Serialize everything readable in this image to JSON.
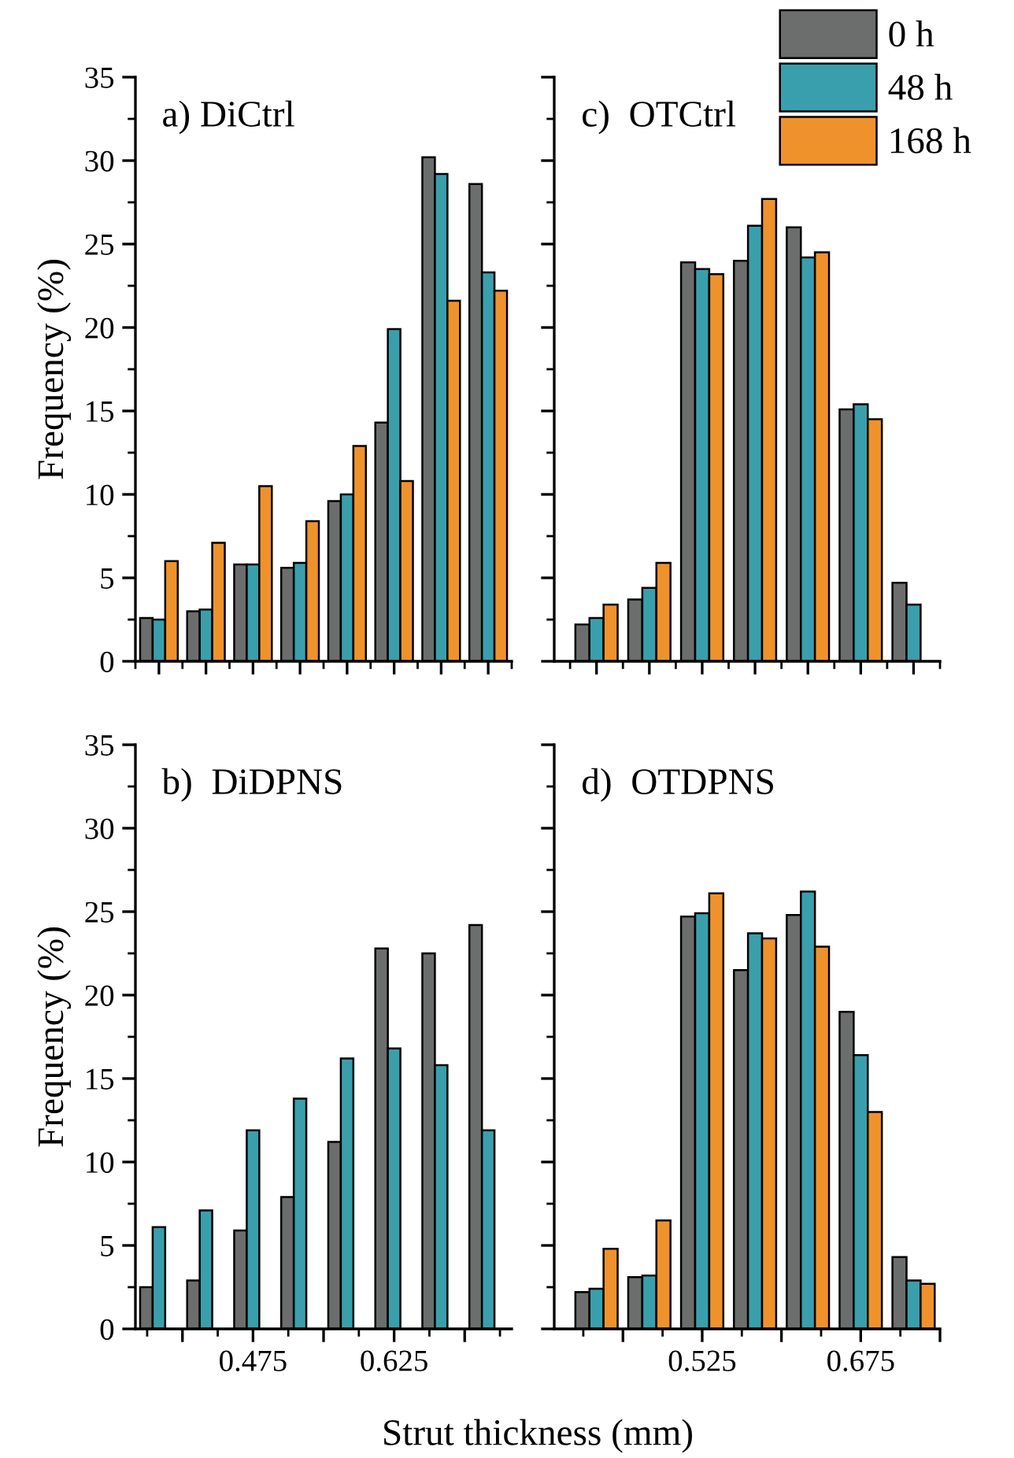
{
  "chart_data": [
    {
      "type": "bar",
      "annotations": [
        "a) DiCtrl"
      ],
      "ylabel": "Frequency (%)",
      "x": [
        0.375,
        0.425,
        0.475,
        0.525,
        0.575,
        0.625,
        0.675,
        0.725
      ],
      "xlim": [
        0.35,
        0.75
      ],
      "xticks": [
        {
          "value": 0.375,
          "label": null
        },
        {
          "value": 0.425,
          "label": null
        },
        {
          "value": 0.475,
          "label": null
        },
        {
          "value": 0.525,
          "label": null
        },
        {
          "value": 0.575,
          "label": null
        },
        {
          "value": 0.625,
          "label": null
        },
        {
          "value": 0.675,
          "label": null
        },
        {
          "value": 0.725,
          "label": null
        }
      ],
      "ylim": [
        0,
        35
      ],
      "yticks": [
        0,
        5,
        10,
        15,
        20,
        25,
        30,
        35
      ],
      "tick_labels": "y",
      "grid": false,
      "legend": false,
      "series": [
        {
          "color": "#6b6e6c",
          "values": [
            2.6,
            3.0,
            5.8,
            5.6,
            9.6,
            14.3,
            30.2,
            28.6
          ]
        },
        {
          "color": "#3a9fac",
          "values": [
            2.5,
            3.1,
            5.8,
            5.9,
            10.0,
            19.9,
            29.2,
            23.3
          ]
        },
        {
          "color": "#ef922c",
          "values": [
            6.0,
            7.1,
            10.5,
            8.4,
            12.9,
            10.8,
            21.6,
            22.2
          ]
        }
      ]
    },
    {
      "type": "bar",
      "annotations": [
        "c)  OTCtrl"
      ],
      "x": [
        0.425,
        0.475,
        0.525,
        0.575,
        0.625,
        0.675,
        0.725
      ],
      "xlim": [
        0.385,
        0.75
      ],
      "xticks": [
        {
          "value": 0.425,
          "label": null
        },
        {
          "value": 0.475,
          "label": null
        },
        {
          "value": 0.525,
          "label": null
        },
        {
          "value": 0.575,
          "label": null
        },
        {
          "value": 0.625,
          "label": null
        },
        {
          "value": 0.675,
          "label": null
        },
        {
          "value": 0.725,
          "label": null
        }
      ],
      "ylim": [
        0,
        35
      ],
      "yticks": [
        {
          "value": 0,
          "label": null
        },
        {
          "value": 5,
          "label": null
        },
        {
          "value": 10,
          "label": null
        },
        {
          "value": 15,
          "label": null
        },
        {
          "value": 20,
          "label": null
        },
        {
          "value": 25,
          "label": null
        },
        {
          "value": 30,
          "label": null
        },
        {
          "value": 35,
          "label": null
        }
      ],
      "tick_labels": false,
      "grid": false,
      "legend": "top right",
      "series": [
        {
          "name": "0 h",
          "color": "#6b6e6c",
          "values": [
            2.2,
            3.7,
            23.9,
            24.0,
            26.0,
            15.1,
            4.7
          ]
        },
        {
          "name": "48 h",
          "color": "#3a9fac",
          "values": [
            2.6,
            4.4,
            23.5,
            26.1,
            24.2,
            15.4,
            3.4
          ]
        },
        {
          "name": "168 h",
          "color": "#ef922c",
          "values": [
            3.4,
            5.9,
            23.2,
            27.7,
            24.5,
            14.5,
            null
          ]
        }
      ]
    },
    {
      "type": "bar",
      "annotations": [
        "b)  DiDPNS"
      ],
      "ylabel": "Frequency (%)",
      "xlabel": "Strut thickness (mm)",
      "x": [
        0.375,
        0.425,
        0.475,
        0.525,
        0.575,
        0.625,
        0.675,
        0.725
      ],
      "xlim": [
        0.35,
        0.75
      ],
      "xticks": [
        {
          "value": 0.4,
          "label": null
        },
        0.475,
        {
          "value": 0.55,
          "label": null
        },
        0.625,
        {
          "value": 0.7,
          "label": null
        }
      ],
      "ylim": [
        0,
        35
      ],
      "yticks": [
        0,
        5,
        10,
        15,
        20,
        25,
        30,
        35
      ],
      "grid": false,
      "legend": false,
      "series": [
        {
          "color": "#6b6e6c",
          "values": [
            2.5,
            2.9,
            5.9,
            7.9,
            11.2,
            22.8,
            22.5,
            24.2
          ]
        },
        {
          "color": "#3a9fac",
          "values": [
            6.1,
            7.1,
            11.9,
            13.8,
            16.2,
            16.8,
            15.8,
            11.9
          ]
        },
        {
          "color": "#ef922c",
          "values": [
            null,
            null,
            null,
            null,
            null,
            null,
            null,
            null
          ]
        }
      ]
    },
    {
      "type": "bar",
      "annotations": [
        "d)  OTDPNS"
      ],
      "x": [
        0.425,
        0.475,
        0.525,
        0.575,
        0.625,
        0.675,
        0.725
      ],
      "xlim": [
        0.385,
        0.75
      ],
      "xticks": [
        {
          "value": 0.45,
          "label": null
        },
        0.525,
        {
          "value": 0.6,
          "label": null
        },
        0.675,
        {
          "value": 0.75,
          "label": null
        }
      ],
      "ylim": [
        0,
        35
      ],
      "yticks": [
        {
          "value": 0,
          "label": null
        },
        {
          "value": 5,
          "label": null
        },
        {
          "value": 10,
          "label": null
        },
        {
          "value": 15,
          "label": null
        },
        {
          "value": 20,
          "label": null
        },
        {
          "value": 25,
          "label": null
        },
        {
          "value": 30,
          "label": null
        },
        {
          "value": 35,
          "label": null
        }
      ],
      "tick_labels": "x",
      "grid": false,
      "legend": false,
      "series": [
        {
          "color": "#6b6e6c",
          "values": [
            2.2,
            3.1,
            24.7,
            21.5,
            24.8,
            19.0,
            4.3
          ]
        },
        {
          "color": "#3a9fac",
          "values": [
            2.4,
            3.2,
            24.9,
            23.7,
            26.2,
            16.4,
            2.9
          ]
        },
        {
          "color": "#ef922c",
          "values": [
            4.8,
            6.5,
            26.1,
            23.4,
            22.9,
            13.0,
            2.7
          ]
        }
      ]
    }
  ]
}
